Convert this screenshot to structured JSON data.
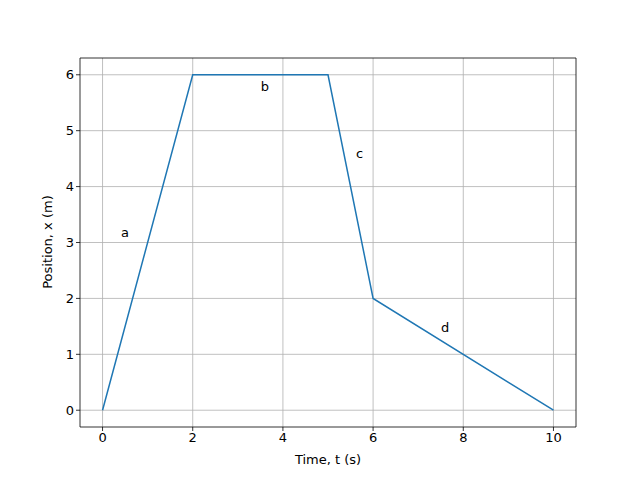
{
  "chart_data": {
    "type": "line",
    "x_label": "Time, t (s)",
    "y_label": "Position, x (m)",
    "x": [
      0,
      2,
      5,
      6,
      10
    ],
    "values": [
      0,
      6,
      6,
      2,
      0
    ],
    "color": "#1f77b4",
    "xlim": [
      -0.5,
      10.5
    ],
    "ylim": [
      -0.3,
      6.3
    ],
    "xticks": [
      0,
      2,
      4,
      6,
      8,
      10
    ],
    "yticks": [
      0,
      1,
      2,
      3,
      4,
      5,
      6
    ],
    "grid": true,
    "annotations": [
      {
        "text": "a",
        "x": 0.5,
        "y": 3.18
      },
      {
        "text": "b",
        "x": 3.6,
        "y": 5.79
      },
      {
        "text": "c",
        "x": 5.7,
        "y": 4.59
      },
      {
        "text": "d",
        "x": 7.6,
        "y": 1.48
      }
    ]
  }
}
